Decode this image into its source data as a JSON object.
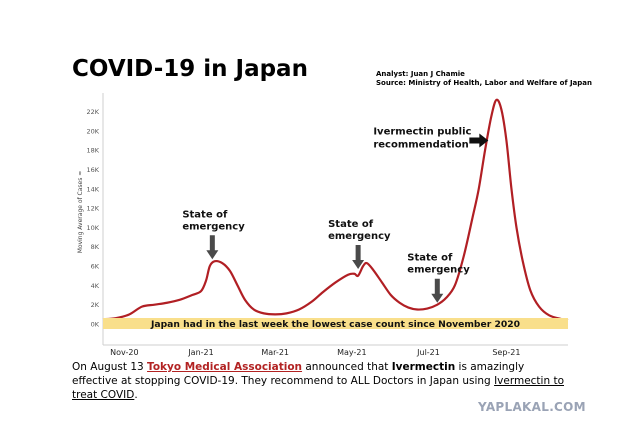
{
  "chart_data": {
    "type": "line",
    "title": "COVID-19 in Japan",
    "credits": {
      "analyst": "Analyst: Juan J Chamie",
      "source": "Source: Ministry of Health, Labor and Welfare of Japan"
    },
    "ylabel": "Moving Average of Cases ≈",
    "ylim": [
      0,
      23500
    ],
    "yticks": [
      {
        "value": 0,
        "label": "0K"
      },
      {
        "value": 2000,
        "label": "2K"
      },
      {
        "value": 4000,
        "label": "4K"
      },
      {
        "value": 6000,
        "label": "6K"
      },
      {
        "value": 8000,
        "label": "8K"
      },
      {
        "value": 10000,
        "label": "10K"
      },
      {
        "value": 12000,
        "label": "12K"
      },
      {
        "value": 14000,
        "label": "14K"
      },
      {
        "value": 16000,
        "label": "16K"
      },
      {
        "value": 18000,
        "label": "18K"
      },
      {
        "value": 20000,
        "label": "20K"
      },
      {
        "value": 22000,
        "label": "22K"
      }
    ],
    "xlim": [
      "2020-10-15",
      "2021-10-20"
    ],
    "xticks": [
      {
        "date": "2020-11-01",
        "label": "Nov-20"
      },
      {
        "date": "2021-01-01",
        "label": "Jan-21"
      },
      {
        "date": "2021-03-01",
        "label": "Mar-21"
      },
      {
        "date": "2021-05-01",
        "label": "May-21"
      },
      {
        "date": "2021-07-01",
        "label": "Jul-21"
      },
      {
        "date": "2021-09-01",
        "label": "Sep-21"
      }
    ],
    "grid": false,
    "series": [
      {
        "color": "#b11f24",
        "points": [
          [
            "2020-10-15",
            500
          ],
          [
            "2020-10-25",
            600
          ],
          [
            "2020-11-05",
            1000
          ],
          [
            "2020-11-15",
            1800
          ],
          [
            "2020-11-25",
            2000
          ],
          [
            "2020-12-05",
            2200
          ],
          [
            "2020-12-15",
            2500
          ],
          [
            "2020-12-25",
            3000
          ],
          [
            "2021-01-01",
            3400
          ],
          [
            "2021-01-05",
            4500
          ],
          [
            "2021-01-08",
            6000
          ],
          [
            "2021-01-12",
            6500
          ],
          [
            "2021-01-18",
            6300
          ],
          [
            "2021-01-24",
            5500
          ],
          [
            "2021-01-30",
            4000
          ],
          [
            "2021-02-05",
            2500
          ],
          [
            "2021-02-12",
            1500
          ],
          [
            "2021-02-20",
            1100
          ],
          [
            "2021-03-01",
            1000
          ],
          [
            "2021-03-10",
            1100
          ],
          [
            "2021-03-20",
            1500
          ],
          [
            "2021-03-30",
            2300
          ],
          [
            "2021-04-08",
            3300
          ],
          [
            "2021-04-18",
            4300
          ],
          [
            "2021-04-28",
            5100
          ],
          [
            "2021-05-03",
            5200
          ],
          [
            "2021-05-06",
            5000
          ],
          [
            "2021-05-10",
            6000
          ],
          [
            "2021-05-13",
            6300
          ],
          [
            "2021-05-18",
            5600
          ],
          [
            "2021-05-25",
            4300
          ],
          [
            "2021-06-01",
            3000
          ],
          [
            "2021-06-08",
            2200
          ],
          [
            "2021-06-15",
            1700
          ],
          [
            "2021-06-22",
            1500
          ],
          [
            "2021-06-30",
            1600
          ],
          [
            "2021-07-08",
            2000
          ],
          [
            "2021-07-15",
            2700
          ],
          [
            "2021-07-22",
            4000
          ],
          [
            "2021-07-29",
            7000
          ],
          [
            "2021-08-05",
            11000
          ],
          [
            "2021-08-10",
            14000
          ],
          [
            "2021-08-15",
            18000
          ],
          [
            "2021-08-20",
            21500
          ],
          [
            "2021-08-24",
            23200
          ],
          [
            "2021-08-28",
            22200
          ],
          [
            "2021-09-01",
            19000
          ],
          [
            "2021-09-05",
            14000
          ],
          [
            "2021-09-09",
            10000
          ],
          [
            "2021-09-14",
            6500
          ],
          [
            "2021-09-20",
            3500
          ],
          [
            "2021-09-27",
            1800
          ],
          [
            "2021-10-05",
            900
          ],
          [
            "2021-10-15",
            500
          ],
          [
            "2021-10-20",
            400
          ]
        ]
      }
    ],
    "annotations": [
      {
        "lines": [
          "State of",
          "emergency"
        ],
        "arrow": "down",
        "target": [
          "2021-01-10",
          6700
        ]
      },
      {
        "lines": [
          "State of",
          "emergency"
        ],
        "arrow": "down",
        "target": [
          "2021-05-06",
          5700
        ]
      },
      {
        "lines": [
          "State of",
          "emergency"
        ],
        "arrow": "down",
        "target": [
          "2021-07-08",
          2200
        ]
      },
      {
        "lines": [
          "Ivermectin public",
          "recommendation"
        ],
        "arrow": "right",
        "target": [
          "2021-08-20",
          19000
        ]
      }
    ],
    "band": {
      "text": "Japan had in the last week the lowest case count since November 2020",
      "color": "#f9df8b"
    }
  },
  "caption": {
    "prefix": "On August 13 ",
    "link": "Tokyo Medical Association",
    "middle": " announced that ",
    "drug": "Ivermectin",
    "rest": " is amazingly effective at stopping COVID-19. They recommend to ALL Doctors in Japan using ",
    "link2": "Ivermectin to treat COVID",
    "end": "."
  },
  "watermark": "YAPLAKAL.COM"
}
